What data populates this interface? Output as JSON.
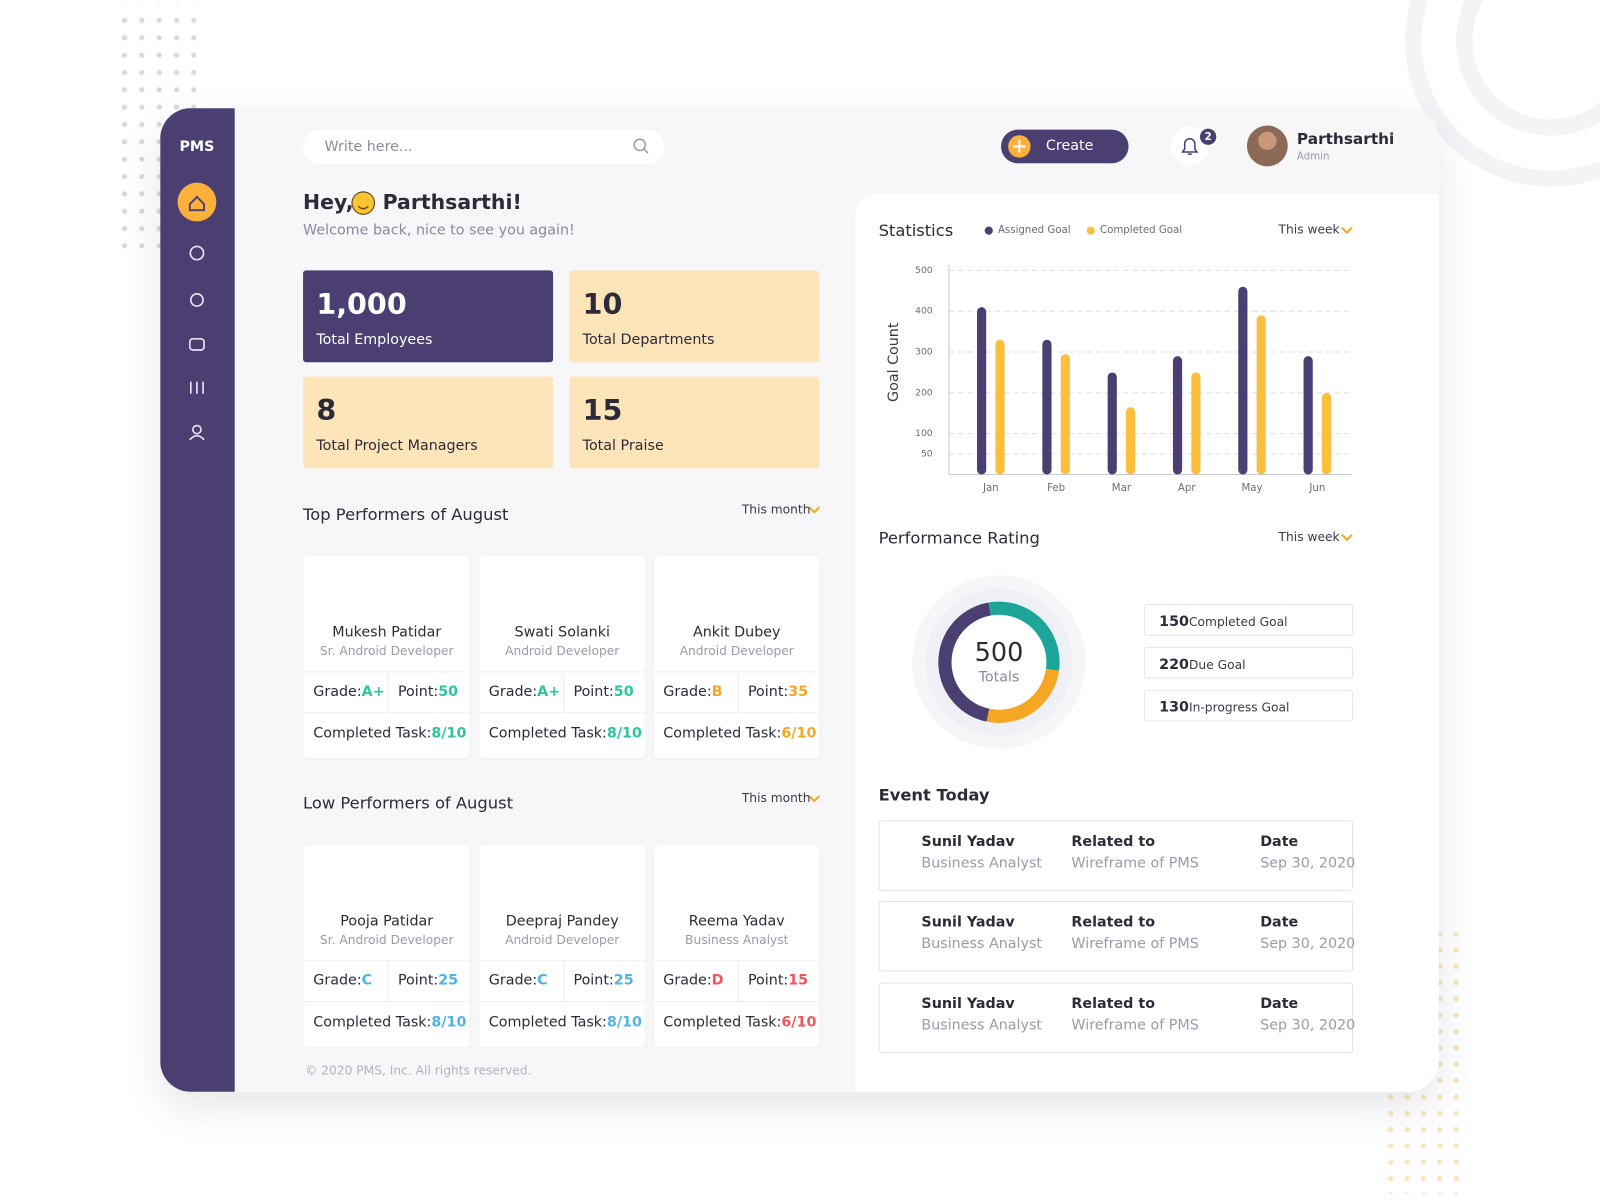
{
  "sidebar": {
    "brand": "PMS"
  },
  "header": {
    "search_placeholder": "Write here...",
    "create": "Create",
    "notifications": 2,
    "user_name": "Parthsarthi",
    "user_role": "Admin"
  },
  "greeting": {
    "hello": "Hey,",
    "name": "Parthsarthi!",
    "subtitle": "Welcome back, nice to see you again!"
  },
  "stats": [
    {
      "value": "1,000",
      "label": "Total Employees"
    },
    {
      "value": "10",
      "label": "Total Departments"
    },
    {
      "value": "8",
      "label": "Total Project Managers"
    },
    {
      "value": "15",
      "label": "Total Praise"
    }
  ],
  "labels": {
    "grade": "Grade:",
    "point": "Point:",
    "task": "Completed Task:"
  },
  "top_performers": {
    "title": "Top Performers of August",
    "period": "This month",
    "people": [
      {
        "name": "Mukesh Patidar",
        "role": "Sr. Android Developer",
        "grade": "A+",
        "point": 50,
        "task": "8/10",
        "color": "#2ec4a0"
      },
      {
        "name": "Swati Solanki",
        "role": "Android Developer",
        "grade": "A+",
        "point": 50,
        "task": "8/10",
        "color": "#2ec4a0"
      },
      {
        "name": "Ankit Dubey",
        "role": "Android Developer",
        "grade": "B",
        "point": 35,
        "task": "6/10",
        "color": "#f5a623"
      }
    ]
  },
  "low_performers": {
    "title": "Low Performers of August",
    "period": "This month",
    "people": [
      {
        "name": "Pooja Patidar",
        "role": "Sr. Android Developer",
        "grade": "C",
        "point": 25,
        "task": "8/10",
        "color": "#4fb3e8"
      },
      {
        "name": "Deepraj Pandey",
        "role": "Android Developer",
        "grade": "C",
        "point": 25,
        "task": "8/10",
        "color": "#4fb3e8"
      },
      {
        "name": "Reema Yadav",
        "role": "Business Analyst",
        "grade": "D",
        "point": 15,
        "task": "6/10",
        "color": "#f2545b"
      }
    ]
  },
  "chart_data": {
    "type": "bar",
    "title": "Statistics",
    "period": "This week",
    "y_label": "Goal Count",
    "categories": [
      "Jan",
      "Feb",
      "Mar",
      "Apr",
      "May",
      "Jun"
    ],
    "series": [
      {
        "name": "Assigned Goal",
        "color": "#4b3f72",
        "values": [
          410,
          330,
          250,
          290,
          460,
          290
        ]
      },
      {
        "name": "Completed Goal",
        "color": "#fbbf3b",
        "values": [
          330,
          295,
          165,
          250,
          390,
          200
        ]
      }
    ],
    "ylim": [
      0,
      500
    ],
    "yticks": [
      500,
      400,
      300,
      200,
      100,
      50
    ],
    "grid": true
  },
  "rating": {
    "title": "Performance Rating",
    "period": "This week",
    "total": 500,
    "total_label": "Totals",
    "items": [
      {
        "value": 150,
        "label": "Completed Goal",
        "color": "#1ea59a"
      },
      {
        "value": 220,
        "label": "Due Goal",
        "color": "#4b3f72"
      },
      {
        "value": 130,
        "label": "In-progress Goal",
        "color": "#f5a623"
      }
    ]
  },
  "events": {
    "title": "Event Today",
    "rows": [
      {
        "name": "Sunil Yadav",
        "role": "Business Analyst",
        "related_label": "Related to",
        "related": "Wireframe of PMS",
        "date_label": "Date",
        "date": "Sep 30, 2020"
      },
      {
        "name": "Sunil Yadav",
        "role": "Business Analyst",
        "related_label": "Related to",
        "related": "Wireframe of PMS",
        "date_label": "Date",
        "date": "Sep 30, 2020"
      },
      {
        "name": "Sunil Yadav",
        "role": "Business Analyst",
        "related_label": "Related to",
        "related": "Wireframe of PMS",
        "date_label": "Date",
        "date": "Sep 30, 2020"
      }
    ]
  },
  "footer": "© 2020 PMS, Inc. All rights reserved."
}
